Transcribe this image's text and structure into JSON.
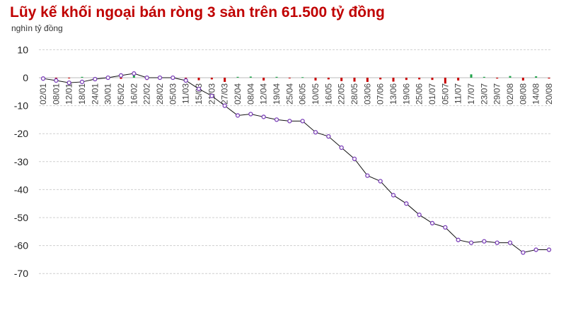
{
  "chart_data": {
    "type": "line",
    "title": "Lũy kế khối ngoại bán ròng 3 sàn trên 61.500 tỷ đồng",
    "unit": "nghìn tỷ đồng",
    "ylim": [
      -70,
      10
    ],
    "yticks": [
      10,
      0,
      -10,
      -20,
      -30,
      -40,
      -50,
      -60,
      -70
    ],
    "grid": true,
    "categories": [
      "02/01",
      "08/01",
      "12/01",
      "18/01",
      "24/01",
      "30/01",
      "05/02",
      "16/02",
      "22/02",
      "28/02",
      "05/03",
      "11/03",
      "15/03",
      "21/03",
      "27/03",
      "02/04",
      "08/04",
      "12/04",
      "19/04",
      "25/04",
      "06/05",
      "10/05",
      "16/05",
      "22/05",
      "28/05",
      "03/06",
      "07/06",
      "13/06",
      "19/06",
      "25/06",
      "01/07",
      "05/07",
      "11/07",
      "17/07",
      "23/07",
      "29/07",
      "02/08",
      "08/08",
      "14/08",
      "20/08"
    ],
    "cumulative": [
      -0.3,
      -1,
      -1.8,
      -1.5,
      -0.5,
      0,
      0.8,
      1.5,
      0,
      0,
      0,
      -1,
      -4,
      -6.5,
      -10,
      -13.5,
      -13,
      -14,
      -15,
      -15.5,
      -15.5,
      -19.5,
      -21,
      -25,
      -29,
      -35,
      -37,
      -42,
      -45,
      -49,
      -52,
      -53.5,
      -58,
      -59,
      -58.5,
      -59,
      -59,
      -62.5,
      -61.5,
      -61.5
    ],
    "daily": [
      -0.2,
      -0.3,
      -0.1,
      0.3,
      0.2,
      0.5,
      -0.4,
      0.8,
      -0.8,
      -0.2,
      -0.3,
      -0.5,
      -0.9,
      -0.6,
      -1.5,
      0.3,
      0.4,
      -1,
      0.3,
      -0.2,
      0.2,
      -1,
      -0.6,
      -1.2,
      -1.4,
      -1.5,
      -0.6,
      -1.4,
      -0.8,
      -0.6,
      -0.8,
      -2.1,
      -1,
      1.2,
      0.3,
      -0.3,
      0.6,
      -1,
      0.5,
      -0.3
    ],
    "colors": {
      "line": "#7b3fb8",
      "connector": "#111111",
      "positive": "#1fa34a",
      "negative": "#c80000",
      "title": "#c00000"
    }
  }
}
